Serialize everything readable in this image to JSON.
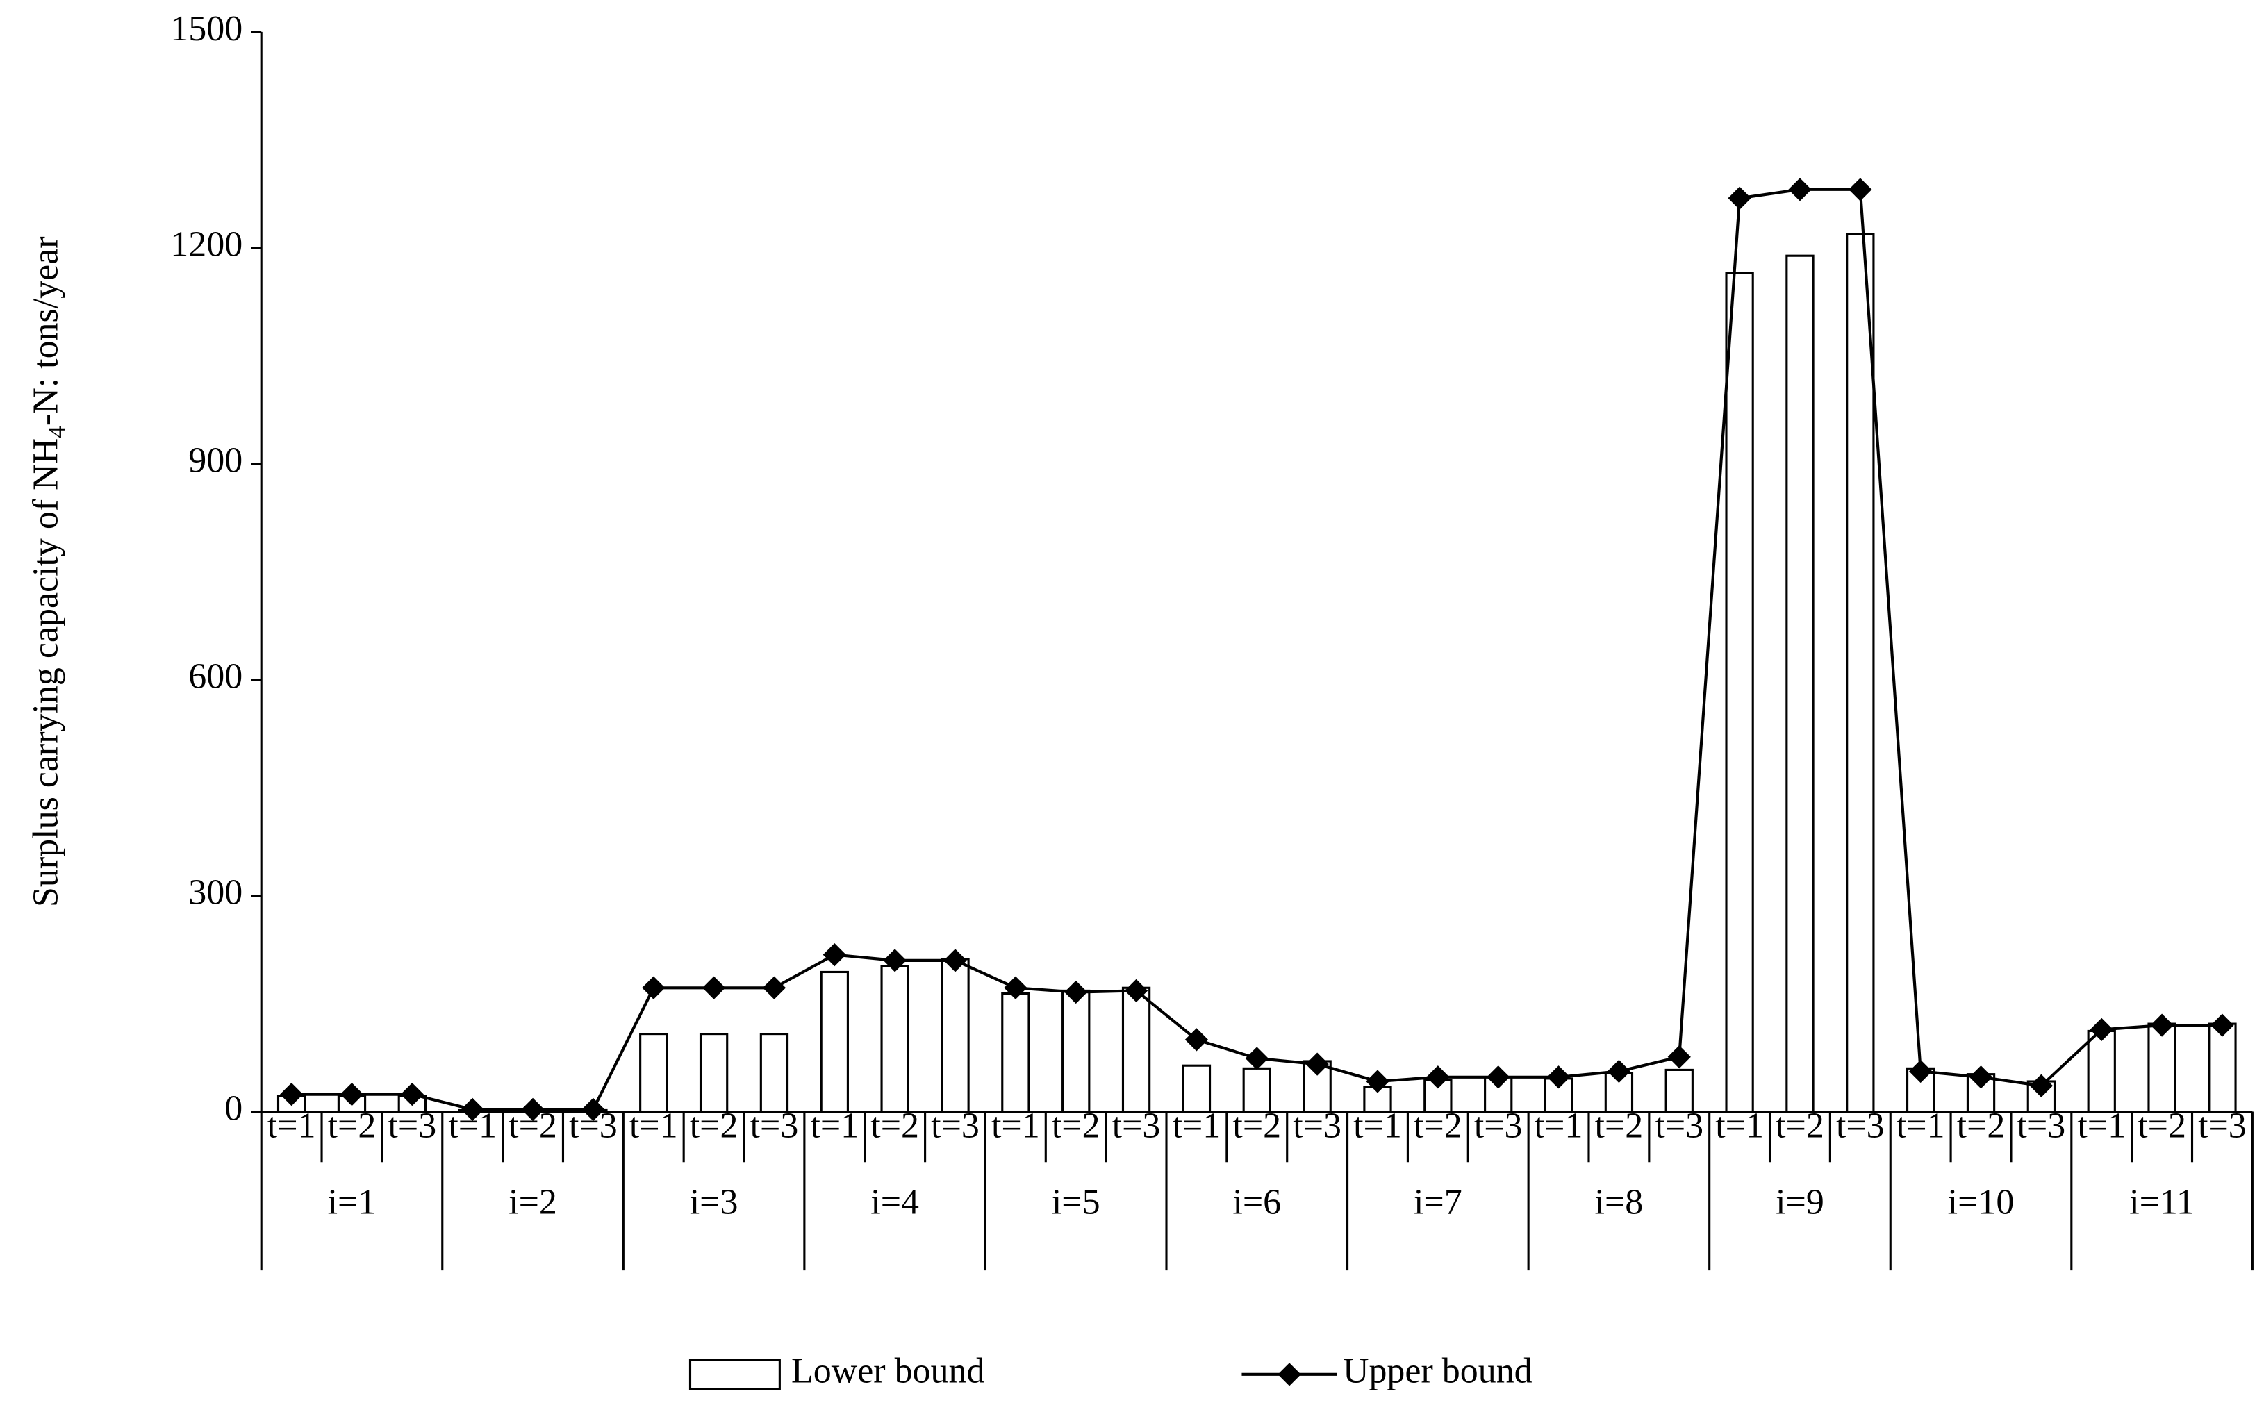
{
  "chart_data": {
    "type": "bar",
    "y_label": [
      "Surplus  carrying capacity of NH",
      "4",
      "-N: tons/year"
    ],
    "categories": [
      "t=1",
      "t=2",
      "t=3",
      "t=1",
      "t=2",
      "t=3",
      "t=1",
      "t=2",
      "t=3",
      "t=1",
      "t=2",
      "t=3",
      "t=1",
      "t=2",
      "t=3",
      "t=1",
      "t=2",
      "t=3",
      "t=1",
      "t=2",
      "t=3",
      "t=1",
      "t=2",
      "t=3",
      "t=1",
      "t=2",
      "t=3",
      "t=1",
      "t=2",
      "t=3",
      "t=1",
      "t=2",
      "t=3"
    ],
    "group_labels": [
      "i=1",
      "i=2",
      "i=3",
      "i=4",
      "i=5",
      "i=6",
      "i=7",
      "i=8",
      "i=9",
      "i=10",
      "i=11"
    ],
    "series": [
      {
        "name": "Lower bound",
        "type": "bar",
        "color": "#ffffff",
        "stroke": "#000000",
        "values": [
          22,
          22,
          22,
          2,
          2,
          2,
          108,
          108,
          108,
          194,
          202,
          212,
          164,
          168,
          172,
          64,
          60,
          70,
          34,
          44,
          48,
          46,
          54,
          58,
          1165,
          1189,
          1219,
          60,
          52,
          42,
          112,
          122,
          122
        ]
      },
      {
        "name": "Upper bound",
        "type": "line",
        "color": "#000000",
        "values": [
          24,
          24,
          24,
          3,
          3,
          3,
          172,
          172,
          172,
          218,
          210,
          210,
          172,
          166,
          168,
          100,
          74,
          66,
          42,
          48,
          48,
          48,
          56,
          76,
          1269,
          1281,
          1281,
          56,
          48,
          36,
          114,
          120,
          120
        ]
      }
    ],
    "ylim": [
      0,
      1500
    ],
    "yticks": [
      0,
      300,
      600,
      900,
      1200,
      1500
    ],
    "grid": false
  }
}
